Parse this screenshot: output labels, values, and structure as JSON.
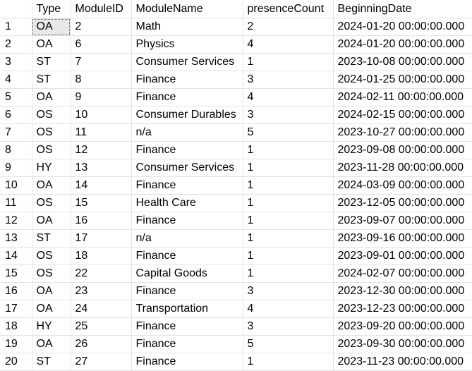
{
  "grid": {
    "columns": [
      "Type",
      "ModuleID",
      "ModuleName",
      "presenceCount",
      "BeginningDate"
    ],
    "rows": [
      {
        "n": "1",
        "cells": [
          "OA",
          "2",
          "Math",
          "2",
          "2024-01-20 00:00:00.000"
        ]
      },
      {
        "n": "2",
        "cells": [
          "OA",
          "6",
          "Physics",
          "4",
          "2024-01-20 00:00:00.000"
        ]
      },
      {
        "n": "3",
        "cells": [
          "ST",
          "7",
          "Consumer Services",
          "1",
          "2023-10-08 00:00:00.000"
        ]
      },
      {
        "n": "4",
        "cells": [
          "ST",
          "8",
          "Finance",
          "3",
          "2024-01-25 00:00:00.000"
        ]
      },
      {
        "n": "5",
        "cells": [
          "OA",
          "9",
          "Finance",
          "4",
          "2024-02-11 00:00:00.000"
        ]
      },
      {
        "n": "6",
        "cells": [
          "OS",
          "10",
          "Consumer Durables",
          "3",
          "2024-02-15 00:00:00.000"
        ]
      },
      {
        "n": "7",
        "cells": [
          "OS",
          "11",
          "n/a",
          "5",
          "2023-10-27 00:00:00.000"
        ]
      },
      {
        "n": "8",
        "cells": [
          "OS",
          "12",
          "Finance",
          "1",
          "2023-09-08 00:00:00.000"
        ]
      },
      {
        "n": "9",
        "cells": [
          "HY",
          "13",
          "Consumer Services",
          "1",
          "2023-11-28 00:00:00.000"
        ]
      },
      {
        "n": "10",
        "cells": [
          "OA",
          "14",
          "Finance",
          "1",
          "2024-03-09 00:00:00.000"
        ]
      },
      {
        "n": "11",
        "cells": [
          "OS",
          "15",
          "Health Care",
          "1",
          "2023-12-05 00:00:00.000"
        ]
      },
      {
        "n": "12",
        "cells": [
          "OA",
          "16",
          "Finance",
          "1",
          "2023-09-07 00:00:00.000"
        ]
      },
      {
        "n": "13",
        "cells": [
          "ST",
          "17",
          "n/a",
          "1",
          "2023-09-16 00:00:00.000"
        ]
      },
      {
        "n": "14",
        "cells": [
          "OS",
          "18",
          "Finance",
          "1",
          "2023-09-01 00:00:00.000"
        ]
      },
      {
        "n": "15",
        "cells": [
          "OS",
          "22",
          "Capital Goods",
          "1",
          "2024-02-07 00:00:00.000"
        ]
      },
      {
        "n": "16",
        "cells": [
          "OA",
          "23",
          "Finance",
          "3",
          "2023-12-30 00:00:00.000"
        ]
      },
      {
        "n": "17",
        "cells": [
          "OA",
          "24",
          "Transportation",
          "4",
          "2023-12-23 00:00:00.000"
        ]
      },
      {
        "n": "18",
        "cells": [
          "HY",
          "25",
          "Finance",
          "3",
          "2023-09-20 00:00:00.000"
        ]
      },
      {
        "n": "19",
        "cells": [
          "OA",
          "26",
          "Finance",
          "5",
          "2023-09-30 00:00:00.000"
        ]
      },
      {
        "n": "20",
        "cells": [
          "ST",
          "27",
          "Finance",
          "1",
          "2023-11-23 00:00:00.000"
        ]
      }
    ]
  }
}
